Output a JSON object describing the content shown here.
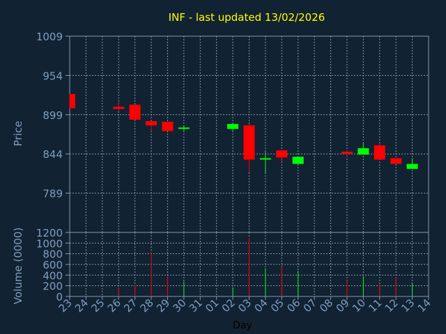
{
  "title": "INF - last updated 13/02/2026",
  "colors": {
    "background": "#112233",
    "panel_border": "#8899aa",
    "grid": "#8899aa",
    "title": "#ffff00",
    "axis_text": "#7f9fbf",
    "up": "#00ff00",
    "down": "#ff0000"
  },
  "chart_data": [
    {
      "type": "candlestick",
      "ylabel": "Price",
      "ylim": [
        734,
        1009
      ],
      "yticks": [
        "1009",
        "954",
        "899",
        "844",
        "789"
      ],
      "x": [
        "23",
        "24",
        "25",
        "26",
        "27",
        "28",
        "29",
        "30",
        "31",
        "01",
        "02",
        "03",
        "04",
        "05",
        "06",
        "07",
        "08",
        "09",
        "10",
        "11",
        "12",
        "13",
        "14"
      ],
      "candles": [
        {
          "x": "23",
          "open": 928,
          "close": 908,
          "high": 928,
          "low": 908
        },
        {
          "x": "26",
          "open": 910,
          "close": 907,
          "high": 917,
          "low": 904
        },
        {
          "x": "27",
          "open": 913,
          "close": 892,
          "high": 913,
          "low": 892
        },
        {
          "x": "28",
          "open": 890,
          "close": 884,
          "high": 890,
          "low": 876
        },
        {
          "x": "29",
          "open": 889,
          "close": 876,
          "high": 889,
          "low": 876
        },
        {
          "x": "30",
          "open": 879,
          "close": 881,
          "high": 884,
          "low": 876
        },
        {
          "x": "02",
          "open": 879,
          "close": 886,
          "high": 886,
          "low": 876
        },
        {
          "x": "03",
          "open": 884,
          "close": 836,
          "high": 886,
          "low": 818
        },
        {
          "x": "04",
          "open": 836,
          "close": 838,
          "high": 847,
          "low": 817
        },
        {
          "x": "05",
          "open": 849,
          "close": 839,
          "high": 849,
          "low": 833
        },
        {
          "x": "06",
          "open": 830,
          "close": 840,
          "high": 840,
          "low": 830
        },
        {
          "x": "09",
          "open": 847,
          "close": 844,
          "high": 849,
          "low": 840
        },
        {
          "x": "10",
          "open": 843,
          "close": 852,
          "high": 859,
          "low": 843
        },
        {
          "x": "11",
          "open": 856,
          "close": 836,
          "high": 859,
          "low": 836
        },
        {
          "x": "12",
          "open": 838,
          "close": 830,
          "high": 838,
          "low": 830
        },
        {
          "x": "13",
          "open": 823,
          "close": 830,
          "high": 838,
          "low": 823
        }
      ]
    },
    {
      "type": "bar",
      "ylabel": "Volume (0000)",
      "xlabel": "Day",
      "ylim": [
        0,
        1200
      ],
      "yticks": [
        "1200",
        "1000",
        "800",
        "600",
        "400",
        "200",
        "0"
      ],
      "x": [
        "23",
        "24",
        "25",
        "26",
        "27",
        "28",
        "29",
        "30",
        "31",
        "01",
        "02",
        "03",
        "04",
        "05",
        "06",
        "07",
        "08",
        "09",
        "10",
        "11",
        "12",
        "13",
        "14"
      ],
      "volumes": [
        {
          "x": "23",
          "value": 0,
          "direction": "down"
        },
        {
          "x": "26",
          "value": 170,
          "direction": "down"
        },
        {
          "x": "27",
          "value": 210,
          "direction": "down"
        },
        {
          "x": "28",
          "value": 840,
          "direction": "down"
        },
        {
          "x": "29",
          "value": 390,
          "direction": "down"
        },
        {
          "x": "30",
          "value": 280,
          "direction": "up"
        },
        {
          "x": "02",
          "value": 170,
          "direction": "up"
        },
        {
          "x": "03",
          "value": 1100,
          "direction": "down"
        },
        {
          "x": "04",
          "value": 530,
          "direction": "up"
        },
        {
          "x": "05",
          "value": 560,
          "direction": "down"
        },
        {
          "x": "06",
          "value": 480,
          "direction": "up"
        },
        {
          "x": "09",
          "value": 300,
          "direction": "down"
        },
        {
          "x": "10",
          "value": 380,
          "direction": "up"
        },
        {
          "x": "11",
          "value": 230,
          "direction": "down"
        },
        {
          "x": "12",
          "value": 370,
          "direction": "down"
        },
        {
          "x": "13",
          "value": 250,
          "direction": "up"
        }
      ]
    }
  ]
}
